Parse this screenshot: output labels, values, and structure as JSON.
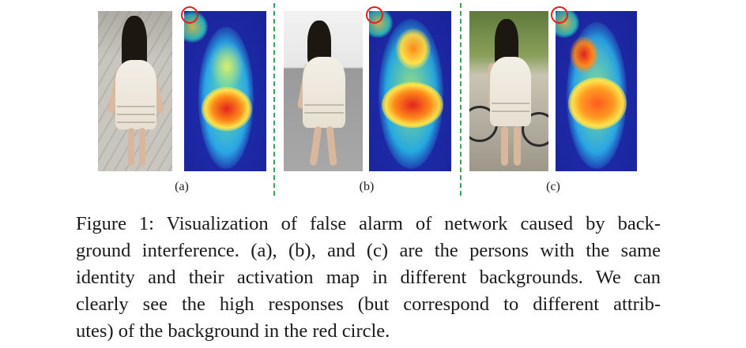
{
  "panels": [
    {
      "label": "(a)"
    },
    {
      "label": "(b)"
    },
    {
      "label": "(c)"
    }
  ],
  "caption": {
    "lines": [
      "Figure 1: Visualization of false alarm of network caused by back-",
      "ground interference. (a), (b), and (c) are the persons with the same",
      "identity and their activation map in different backgrounds. We can",
      "clearly see the high responses (but correspond to different attrib-",
      "utes) of the background in the red circle."
    ]
  },
  "colors": {
    "highlight_circle": "#e31d1d",
    "divider": "#3aa35a"
  }
}
